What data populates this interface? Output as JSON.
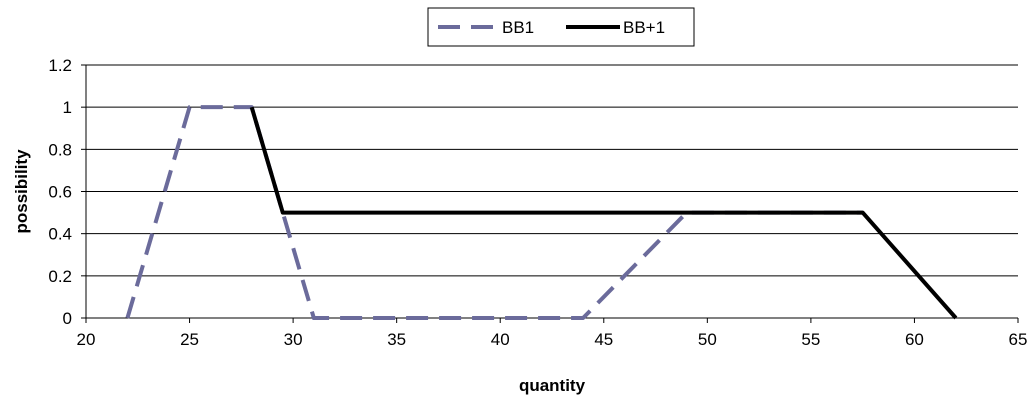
{
  "chart_data": {
    "type": "line",
    "title": "",
    "xlabel": "quantity",
    "ylabel": "possibility",
    "xlim": [
      20,
      65
    ],
    "ylim": [
      0,
      1.2
    ],
    "x_ticks": [
      "20",
      "25",
      "30",
      "35",
      "40",
      "45",
      "50",
      "55",
      "60",
      "65"
    ],
    "y_ticks": [
      "0",
      "0.2",
      "0.4",
      "0.6",
      "0.8",
      "1",
      "1.2"
    ],
    "grid": "horizontal",
    "legend_position": "top-center",
    "series": [
      {
        "name": "BB1",
        "style": "dashed",
        "color": "#6b6b9b",
        "x": [
          22,
          25,
          28,
          31,
          44,
          49,
          57.5
        ],
        "y": [
          0,
          1,
          1,
          0,
          0,
          0.5,
          0.5
        ]
      },
      {
        "name": "BB+1",
        "style": "solid",
        "color": "#000000",
        "x": [
          28,
          29.5,
          57.5,
          62
        ],
        "y": [
          1,
          0.5,
          0.5,
          0
        ]
      }
    ]
  }
}
